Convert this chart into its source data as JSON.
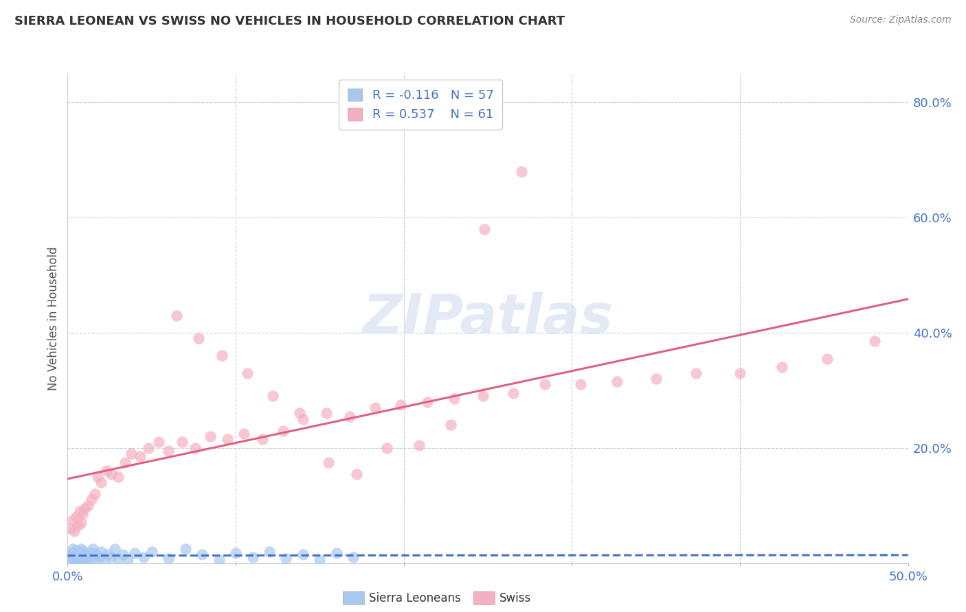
{
  "title": "SIERRA LEONEAN VS SWISS NO VEHICLES IN HOUSEHOLD CORRELATION CHART",
  "source": "Source: ZipAtlas.com",
  "ylabel": "No Vehicles in Household",
  "xlim": [
    0.0,
    0.5
  ],
  "ylim": [
    0.0,
    0.85
  ],
  "sl_R": -0.116,
  "sl_N": 57,
  "sw_R": 0.537,
  "sw_N": 61,
  "sl_color": "#a8c8f0",
  "sw_color": "#f4b0c0",
  "sl_line_color": "#4472c4",
  "sw_line_color": "#e06080",
  "legend_label_sl": "Sierra Leoneans",
  "legend_label_sw": "Swiss",
  "watermark": "ZIPatlas",
  "sl_x": [
    0.001,
    0.001,
    0.001,
    0.002,
    0.002,
    0.002,
    0.003,
    0.003,
    0.003,
    0.003,
    0.004,
    0.004,
    0.004,
    0.005,
    0.005,
    0.005,
    0.005,
    0.006,
    0.006,
    0.007,
    0.007,
    0.008,
    0.008,
    0.009,
    0.01,
    0.01,
    0.011,
    0.012,
    0.013,
    0.014,
    0.015,
    0.016,
    0.017,
    0.019,
    0.02,
    0.022,
    0.024,
    0.026,
    0.028,
    0.03,
    0.033,
    0.036,
    0.04,
    0.045,
    0.05,
    0.06,
    0.07,
    0.08,
    0.09,
    0.1,
    0.11,
    0.12,
    0.13,
    0.14,
    0.15,
    0.16,
    0.17
  ],
  "sl_y": [
    0.005,
    0.01,
    0.015,
    0.005,
    0.008,
    0.015,
    0.005,
    0.01,
    0.018,
    0.025,
    0.005,
    0.012,
    0.02,
    0.005,
    0.01,
    0.015,
    0.022,
    0.008,
    0.015,
    0.005,
    0.02,
    0.01,
    0.025,
    0.005,
    0.008,
    0.02,
    0.015,
    0.01,
    0.005,
    0.018,
    0.025,
    0.008,
    0.015,
    0.01,
    0.02,
    0.005,
    0.015,
    0.01,
    0.025,
    0.008,
    0.015,
    0.005,
    0.018,
    0.01,
    0.02,
    0.008,
    0.025,
    0.015,
    0.005,
    0.018,
    0.01,
    0.02,
    0.008,
    0.015,
    0.005,
    0.018,
    0.01
  ],
  "sw_x": [
    0.002,
    0.003,
    0.004,
    0.005,
    0.006,
    0.007,
    0.008,
    0.009,
    0.01,
    0.012,
    0.014,
    0.016,
    0.018,
    0.02,
    0.023,
    0.026,
    0.03,
    0.034,
    0.038,
    0.043,
    0.048,
    0.054,
    0.06,
    0.068,
    0.076,
    0.085,
    0.095,
    0.105,
    0.116,
    0.128,
    0.14,
    0.154,
    0.168,
    0.183,
    0.198,
    0.214,
    0.23,
    0.247,
    0.265,
    0.284,
    0.305,
    0.327,
    0.35,
    0.374,
    0.4,
    0.425,
    0.452,
    0.48,
    0.065,
    0.078,
    0.092,
    0.107,
    0.122,
    0.138,
    0.155,
    0.172,
    0.19,
    0.209,
    0.228,
    0.248,
    0.27
  ],
  "sw_y": [
    0.06,
    0.075,
    0.055,
    0.08,
    0.065,
    0.09,
    0.07,
    0.085,
    0.095,
    0.1,
    0.11,
    0.12,
    0.15,
    0.14,
    0.16,
    0.155,
    0.15,
    0.175,
    0.19,
    0.185,
    0.2,
    0.21,
    0.195,
    0.21,
    0.2,
    0.22,
    0.215,
    0.225,
    0.215,
    0.23,
    0.25,
    0.26,
    0.255,
    0.27,
    0.275,
    0.28,
    0.285,
    0.29,
    0.295,
    0.31,
    0.31,
    0.315,
    0.32,
    0.33,
    0.33,
    0.34,
    0.355,
    0.385,
    0.43,
    0.39,
    0.36,
    0.33,
    0.29,
    0.26,
    0.175,
    0.155,
    0.2,
    0.205,
    0.24,
    0.58,
    0.68
  ]
}
